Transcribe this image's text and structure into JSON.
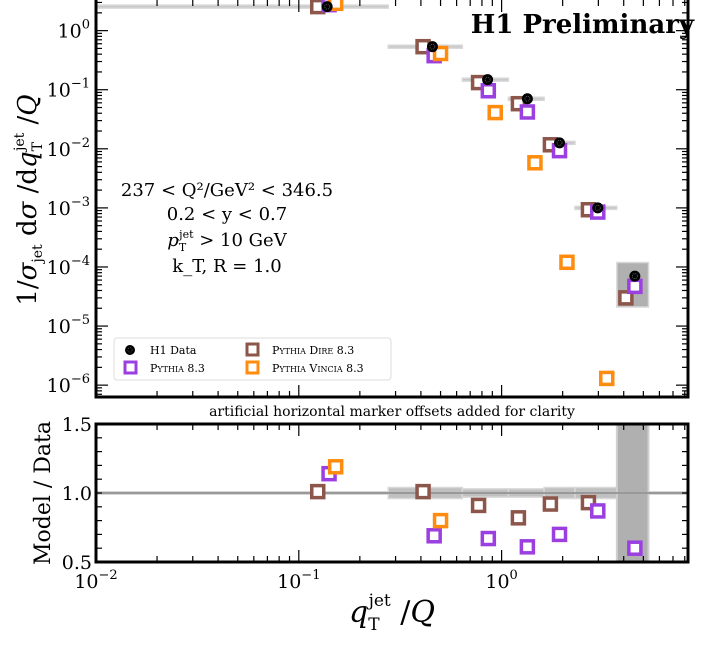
{
  "chart_data": [
    {
      "type": "scatter",
      "panel": "main",
      "title": "H1 Preliminary",
      "xlabel": "q_T^jet / Q",
      "ylabel": "1/σ_jet dσ/dq_T^jet/Q",
      "xscale": "log",
      "yscale": "log",
      "xlim": [
        0.01,
        8.3
      ],
      "ylim": [
        6.3e-07,
        3.3
      ],
      "x_tick_labels": [
        "10^-2",
        "10^-1",
        "10^0"
      ],
      "y_tick_labels": [
        "10^0",
        "10^-1",
        "10^-2",
        "10^-3",
        "10^-4",
        "10^-5",
        "10^-6"
      ],
      "annotations": [
        "237 < Q²/GeV² < 346.5",
        "0.2 < y < 0.7",
        "p_T^jet > 10 GeV",
        "k_T, R = 1.0"
      ],
      "legend": {
        "placement": "lower-left",
        "entries": [
          "H1 Data",
          "Pythia Dire 8.3",
          "Pythia 8.3",
          "Pythia Vincia 8.3"
        ]
      },
      "bins": [
        [
          0.01,
          0.276
        ],
        [
          0.276,
          0.64
        ],
        [
          0.64,
          1.08
        ],
        [
          1.08,
          1.62
        ],
        [
          1.62,
          2.3
        ],
        [
          2.3,
          3.7
        ],
        [
          3.7,
          5.3
        ]
      ],
      "series": [
        {
          "name": "H1 Data",
          "color": "#000000",
          "marker": "circle",
          "x": [
            0.138,
            0.456,
            0.853,
            1.34,
            1.93,
            2.98,
            4.54
          ],
          "values": [
            2.55,
            0.535,
            0.148,
            0.0703,
            0.0126,
            0.001,
            7e-05
          ],
          "sys_error_rel": [
            0.02,
            0.04,
            0.03,
            0.03,
            0.04,
            0.04,
            0.7
          ]
        },
        {
          "name": "Pythia 8.3",
          "color": "#9b3fe0",
          "marker": "open-square",
          "x": [
            0.141,
            0.465,
            0.86,
            1.34,
            1.93,
            2.98,
            4.54
          ],
          "values": [
            2.75,
            0.377,
            0.096,
            0.042,
            0.0093,
            0.00085,
            4.7e-05
          ]
        },
        {
          "name": "Pythia Dire 8.3",
          "color": "#8c564b",
          "marker": "open-square",
          "x": [
            0.124,
            0.41,
            0.77,
            1.21,
            1.74,
            2.68,
            4.1
          ],
          "values": [
            2.55,
            0.535,
            0.132,
            0.058,
            0.0117,
            0.00093,
            3e-05
          ]
        },
        {
          "name": "Pythia Vincia 8.3",
          "color": "#ff8c0e",
          "marker": "open-square",
          "x": [
            0.152,
            0.5,
            0.93,
            1.46,
            2.1,
            3.3
          ],
          "values": [
            2.9,
            0.41,
            0.041,
            0.0058,
            0.00012,
            1.3e-06
          ]
        }
      ]
    },
    {
      "type": "scatter",
      "panel": "ratio",
      "title": "artificial horizontal marker offsets added for clarity",
      "xlabel": "q_T^jet / Q",
      "ylabel": "Model / Data",
      "xscale": "log",
      "xlim": [
        0.01,
        8.3
      ],
      "ylim": [
        0.5,
        1.5
      ],
      "y_tick_labels": [
        "0.5",
        "1.0",
        "1.5"
      ],
      "x_tick_labels": [
        "10^-2",
        "10^-1",
        "10^0"
      ],
      "series": [
        {
          "name": "Pythia 8.3",
          "color": "#9b3fe0",
          "x": [
            0.141,
            0.465,
            0.86,
            1.34,
            1.93,
            2.98,
            4.54
          ],
          "values": [
            1.14,
            0.69,
            0.67,
            0.61,
            0.7,
            0.87,
            0.6
          ]
        },
        {
          "name": "Pythia Dire 8.3",
          "color": "#8c564b",
          "x": [
            0.124,
            0.41,
            0.77,
            1.21,
            1.74,
            2.68
          ],
          "values": [
            1.01,
            1.01,
            0.91,
            0.82,
            0.92,
            0.93
          ]
        },
        {
          "name": "Pythia Vincia 8.3",
          "color": "#ff8c0e",
          "x": [
            0.152,
            0.5
          ],
          "values": [
            1.19,
            0.8
          ]
        }
      ]
    }
  ],
  "text": {
    "title": "H1 Preliminary",
    "ratio_note": "artificial horizontal marker offsets added for clarity",
    "ylabel_main_prefix": "1/σ",
    "ylabel_ratio": "Model / Data",
    "annotations": [
      "237 < Q²/GeV² < 346.5",
      "0.2 < y < 0.7",
      "k_T, R = 1.0"
    ],
    "ratio_ticks": [
      "1.5",
      "1.0",
      "0.5"
    ]
  }
}
